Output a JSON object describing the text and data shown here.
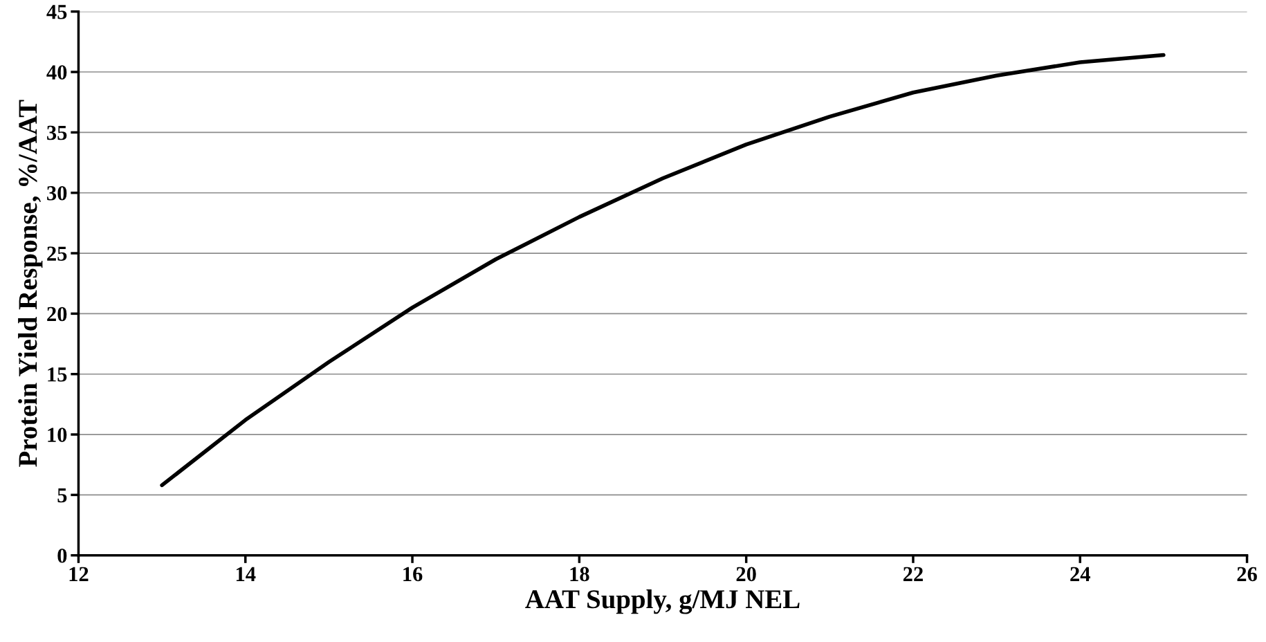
{
  "chart_data": {
    "type": "line",
    "xlabel": "AAT Supply, g/MJ NEL",
    "ylabel": "Protein Yield Response, %/AAT",
    "x": [
      13,
      13.5,
      14,
      15,
      16,
      17,
      18,
      19,
      20,
      21,
      22,
      23,
      24,
      25
    ],
    "series": [
      {
        "color": "#000000",
        "values": [
          5.8,
          8.5,
          11.2,
          16,
          20.5,
          24.5,
          28,
          31.2,
          34,
          36.3,
          38.3,
          39.7,
          40.8,
          41.4
        ]
      }
    ],
    "xlim": [
      12,
      26
    ],
    "xticks": [
      12,
      14,
      16,
      18,
      20,
      22,
      24,
      26
    ],
    "ylim": [
      0,
      45
    ],
    "yticks": [
      0,
      5,
      10,
      15,
      20,
      25,
      30,
      35,
      40,
      45
    ],
    "grid": "y",
    "marker": "none",
    "line_style": "solid"
  }
}
